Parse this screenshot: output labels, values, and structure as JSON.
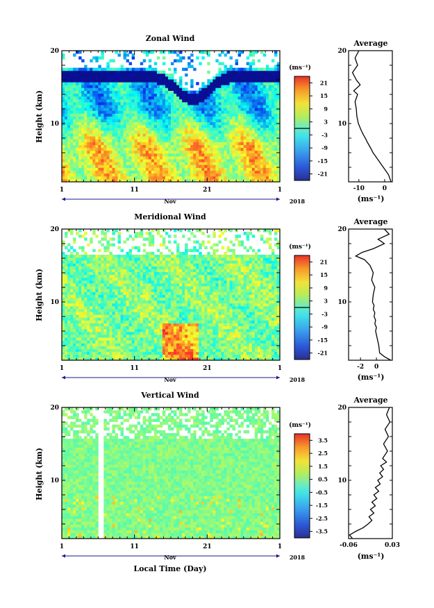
{
  "figure": {
    "xlabel": "Local Time (Day)",
    "month_label": "Nov",
    "year_label": "2018"
  },
  "chart_data": [
    {
      "type": "heatmap",
      "title": "Zonal Wind",
      "ylabel": "Height (km)",
      "ylim": [
        2,
        20
      ],
      "y_ticks": [
        2,
        4,
        6,
        8,
        10,
        12,
        14,
        16,
        18,
        20
      ],
      "y_tick_labels": [
        "20",
        "10"
      ],
      "x_days": [
        1,
        31
      ],
      "x_tick_labels": [
        "1",
        "11",
        "21",
        "1"
      ],
      "colorbar": {
        "unit": "(ms⁻¹)",
        "range": [
          -24,
          24
        ],
        "tick_labels": [
          "21",
          "15",
          "9",
          "3",
          "-3",
          "-9",
          "-15",
          "-21"
        ],
        "zero_line": true
      },
      "pattern": "Weak westerly/easterly mix below 10 km (green-yellow, 0 to 10 ms-1) with strong easterlies (blue, -10 to -25 ms-1) between 10 and 17 km; dark blue jet band near 16-17 km, descending to about 13 km around day 18-20; data gaps above 17 km."
    },
    {
      "type": "line",
      "title": "Average",
      "xlabel": "(ms⁻¹)",
      "x_tick_labels": [
        "-10",
        "0"
      ],
      "xlim": [
        -14,
        3
      ],
      "ylim": [
        2,
        20
      ],
      "y_tick_labels": [
        "20",
        "10"
      ],
      "series": [
        {
          "x": [
            2.5,
            2.0,
            1.5,
            0.5,
            -0.5,
            -1.5,
            -2.5,
            -3.5,
            -4.5,
            -5.2,
            -6.0,
            -6.8,
            -7.5,
            -8.3,
            -9.0,
            -9.6,
            -10.2,
            -10.8,
            -11.0,
            -11.5,
            -10.5,
            -12.0,
            -9.5,
            -11.0,
            -12.5,
            -10.5,
            -11.5,
            -10.0
          ],
          "y": [
            2.0,
            2.5,
            3.0,
            3.5,
            4.0,
            4.5,
            5.0,
            5.5,
            6.0,
            6.5,
            7.0,
            7.5,
            8.0,
            8.5,
            9.0,
            9.5,
            10.0,
            11.0,
            12.0,
            13.0,
            14.0,
            14.5,
            15.3,
            16.0,
            17.0,
            18.0,
            19.0,
            20.0
          ]
        }
      ]
    },
    {
      "type": "heatmap",
      "title": "Meridional Wind",
      "ylabel": "Height (km)",
      "ylim": [
        2,
        20
      ],
      "y_ticks": [
        2,
        4,
        6,
        8,
        10,
        12,
        14,
        16,
        18,
        20
      ],
      "y_tick_labels": [
        "20",
        "10"
      ],
      "x_days": [
        1,
        31
      ],
      "x_tick_labels": [
        "1",
        "11",
        "21",
        "1"
      ],
      "colorbar": {
        "unit": "(ms⁻¹)",
        "range": [
          -24,
          24
        ],
        "tick_labels": [
          "21",
          "15",
          "9",
          "3",
          "-3",
          "-9",
          "-15",
          "-21"
        ],
        "zero_line": true
      },
      "pattern": "Mostly weak meridional wind (-6 to 6 ms-1, cyan-green), with positive (yellow-orange) patches near 3-6 km around days 16-19 and negative (blue) patches between 8-14 km; sparse data above 16 km."
    },
    {
      "type": "line",
      "title": "Average",
      "xlabel": "(ms⁻¹)",
      "x_tick_labels": [
        "-2",
        "0"
      ],
      "xlim": [
        -3.5,
        2
      ],
      "ylim": [
        2,
        20
      ],
      "y_tick_labels": [
        "20",
        "10"
      ],
      "series": [
        {
          "x": [
            1.8,
            1.0,
            0.4,
            0.3,
            0.1,
            -0.1,
            0.0,
            -0.2,
            -0.1,
            -0.3,
            -0.2,
            -0.4,
            -0.3,
            -0.5,
            -0.4,
            -0.2,
            -0.6,
            -0.4,
            -0.8,
            -1.5,
            -2.6,
            -1.8,
            -0.4,
            1.0,
            0.2,
            1.6,
            1.0
          ],
          "y": [
            2.0,
            2.5,
            3.0,
            4.0,
            5.0,
            6.0,
            6.5,
            7.0,
            7.5,
            8.0,
            8.5,
            9.0,
            9.5,
            10.0,
            11.0,
            12.0,
            13.0,
            14.0,
            15.0,
            15.8,
            16.3,
            16.8,
            17.3,
            18.0,
            18.6,
            19.3,
            20.0
          ]
        }
      ]
    },
    {
      "type": "heatmap",
      "title": "Vertical Wind",
      "ylabel": "Height (km)",
      "ylim": [
        2,
        20
      ],
      "y_ticks": [
        2,
        4,
        6,
        8,
        10,
        12,
        14,
        16,
        18,
        20
      ],
      "y_tick_labels": [
        "20",
        "10"
      ],
      "x_days": [
        1,
        31
      ],
      "x_tick_labels": [
        "1",
        "11",
        "21",
        "1"
      ],
      "colorbar": {
        "unit": "(ms⁻¹)",
        "range": [
          -4,
          4
        ],
        "tick_labels": [
          "3.5",
          "2.5",
          "1.5",
          "0.5",
          "-0.5",
          "-1.5",
          "-2.5",
          "-3.5"
        ],
        "zero_line": false
      },
      "pattern": "Near-zero vertical wind (-0.5 to 0.5 ms-1, cyan-aquamarine) throughout, with scattered weak positive (yellow) streaks below 8 km and data gaps near day 6, day 21 and above 15 km."
    },
    {
      "type": "line",
      "title": "Average",
      "xlabel": "(ms⁻¹)",
      "x_tick_labels": [
        "-0.06",
        "0.03"
      ],
      "xlim": [
        -0.06,
        0.03
      ],
      "ylim": [
        2,
        20
      ],
      "y_tick_labels": [
        "20",
        "10"
      ],
      "series": [
        {
          "x": [
            -0.052,
            -0.058,
            -0.045,
            -0.03,
            -0.02,
            -0.012,
            -0.018,
            -0.008,
            -0.015,
            -0.005,
            -0.012,
            -0.002,
            -0.008,
            0.002,
            -0.005,
            0.005,
            0.0,
            0.01,
            0.004,
            0.012,
            0.006,
            0.018,
            0.01,
            0.02,
            0.012,
            0.022,
            0.015,
            0.025,
            0.018,
            0.024
          ],
          "y": [
            2.0,
            2.5,
            3.0,
            3.5,
            4.0,
            4.5,
            5.0,
            5.5,
            6.0,
            6.5,
            7.0,
            7.5,
            8.0,
            8.5,
            9.0,
            9.5,
            10.0,
            10.5,
            11.0,
            11.5,
            12.0,
            12.5,
            13.0,
            14.0,
            15.0,
            16.0,
            17.0,
            18.0,
            19.0,
            20.0
          ]
        }
      ]
    }
  ]
}
